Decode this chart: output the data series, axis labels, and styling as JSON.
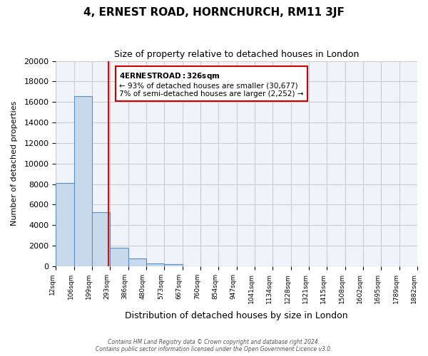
{
  "title": "4, ERNEST ROAD, HORNCHURCH, RM11 3JF",
  "subtitle": "Size of property relative to detached houses in London",
  "xlabel": "Distribution of detached houses by size in London",
  "ylabel": "Number of detached properties",
  "bin_labels": [
    "12sqm",
    "106sqm",
    "199sqm",
    "293sqm",
    "386sqm",
    "480sqm",
    "573sqm",
    "667sqm",
    "760sqm",
    "854sqm",
    "947sqm",
    "1041sqm",
    "1134sqm",
    "1228sqm",
    "1321sqm",
    "1415sqm",
    "1508sqm",
    "1602sqm",
    "1695sqm",
    "1789sqm",
    "1882sqm"
  ],
  "bar_values": [
    8100,
    16600,
    5300,
    1800,
    750,
    250,
    200,
    0,
    0,
    0,
    0,
    0,
    0,
    0,
    0,
    0,
    0,
    0,
    0,
    0
  ],
  "bar_color": "#c9d9ec",
  "bar_edge_color": "#5a8fc3",
  "grid_color": "#cccccc",
  "background_color": "#ffffff",
  "plot_bg_color": "#f0f4fa",
  "ylim": [
    0,
    20000
  ],
  "yticks": [
    0,
    2000,
    4000,
    6000,
    8000,
    10000,
    12000,
    14000,
    16000,
    18000,
    20000
  ],
  "red_line_x": 2.93,
  "annotation_title": "4 ERNEST ROAD: 326sqm",
  "annotation_line1": "← 93% of detached houses are smaller (30,677)",
  "annotation_line2": "7% of semi-detached houses are larger (2,252) →",
  "annotation_box_color": "#ffffff",
  "annotation_box_edge": "#cc0000",
  "footer1": "Contains HM Land Registry data © Crown copyright and database right 2024.",
  "footer2": "Contains public sector information licensed under the Open Government Licence v3.0."
}
